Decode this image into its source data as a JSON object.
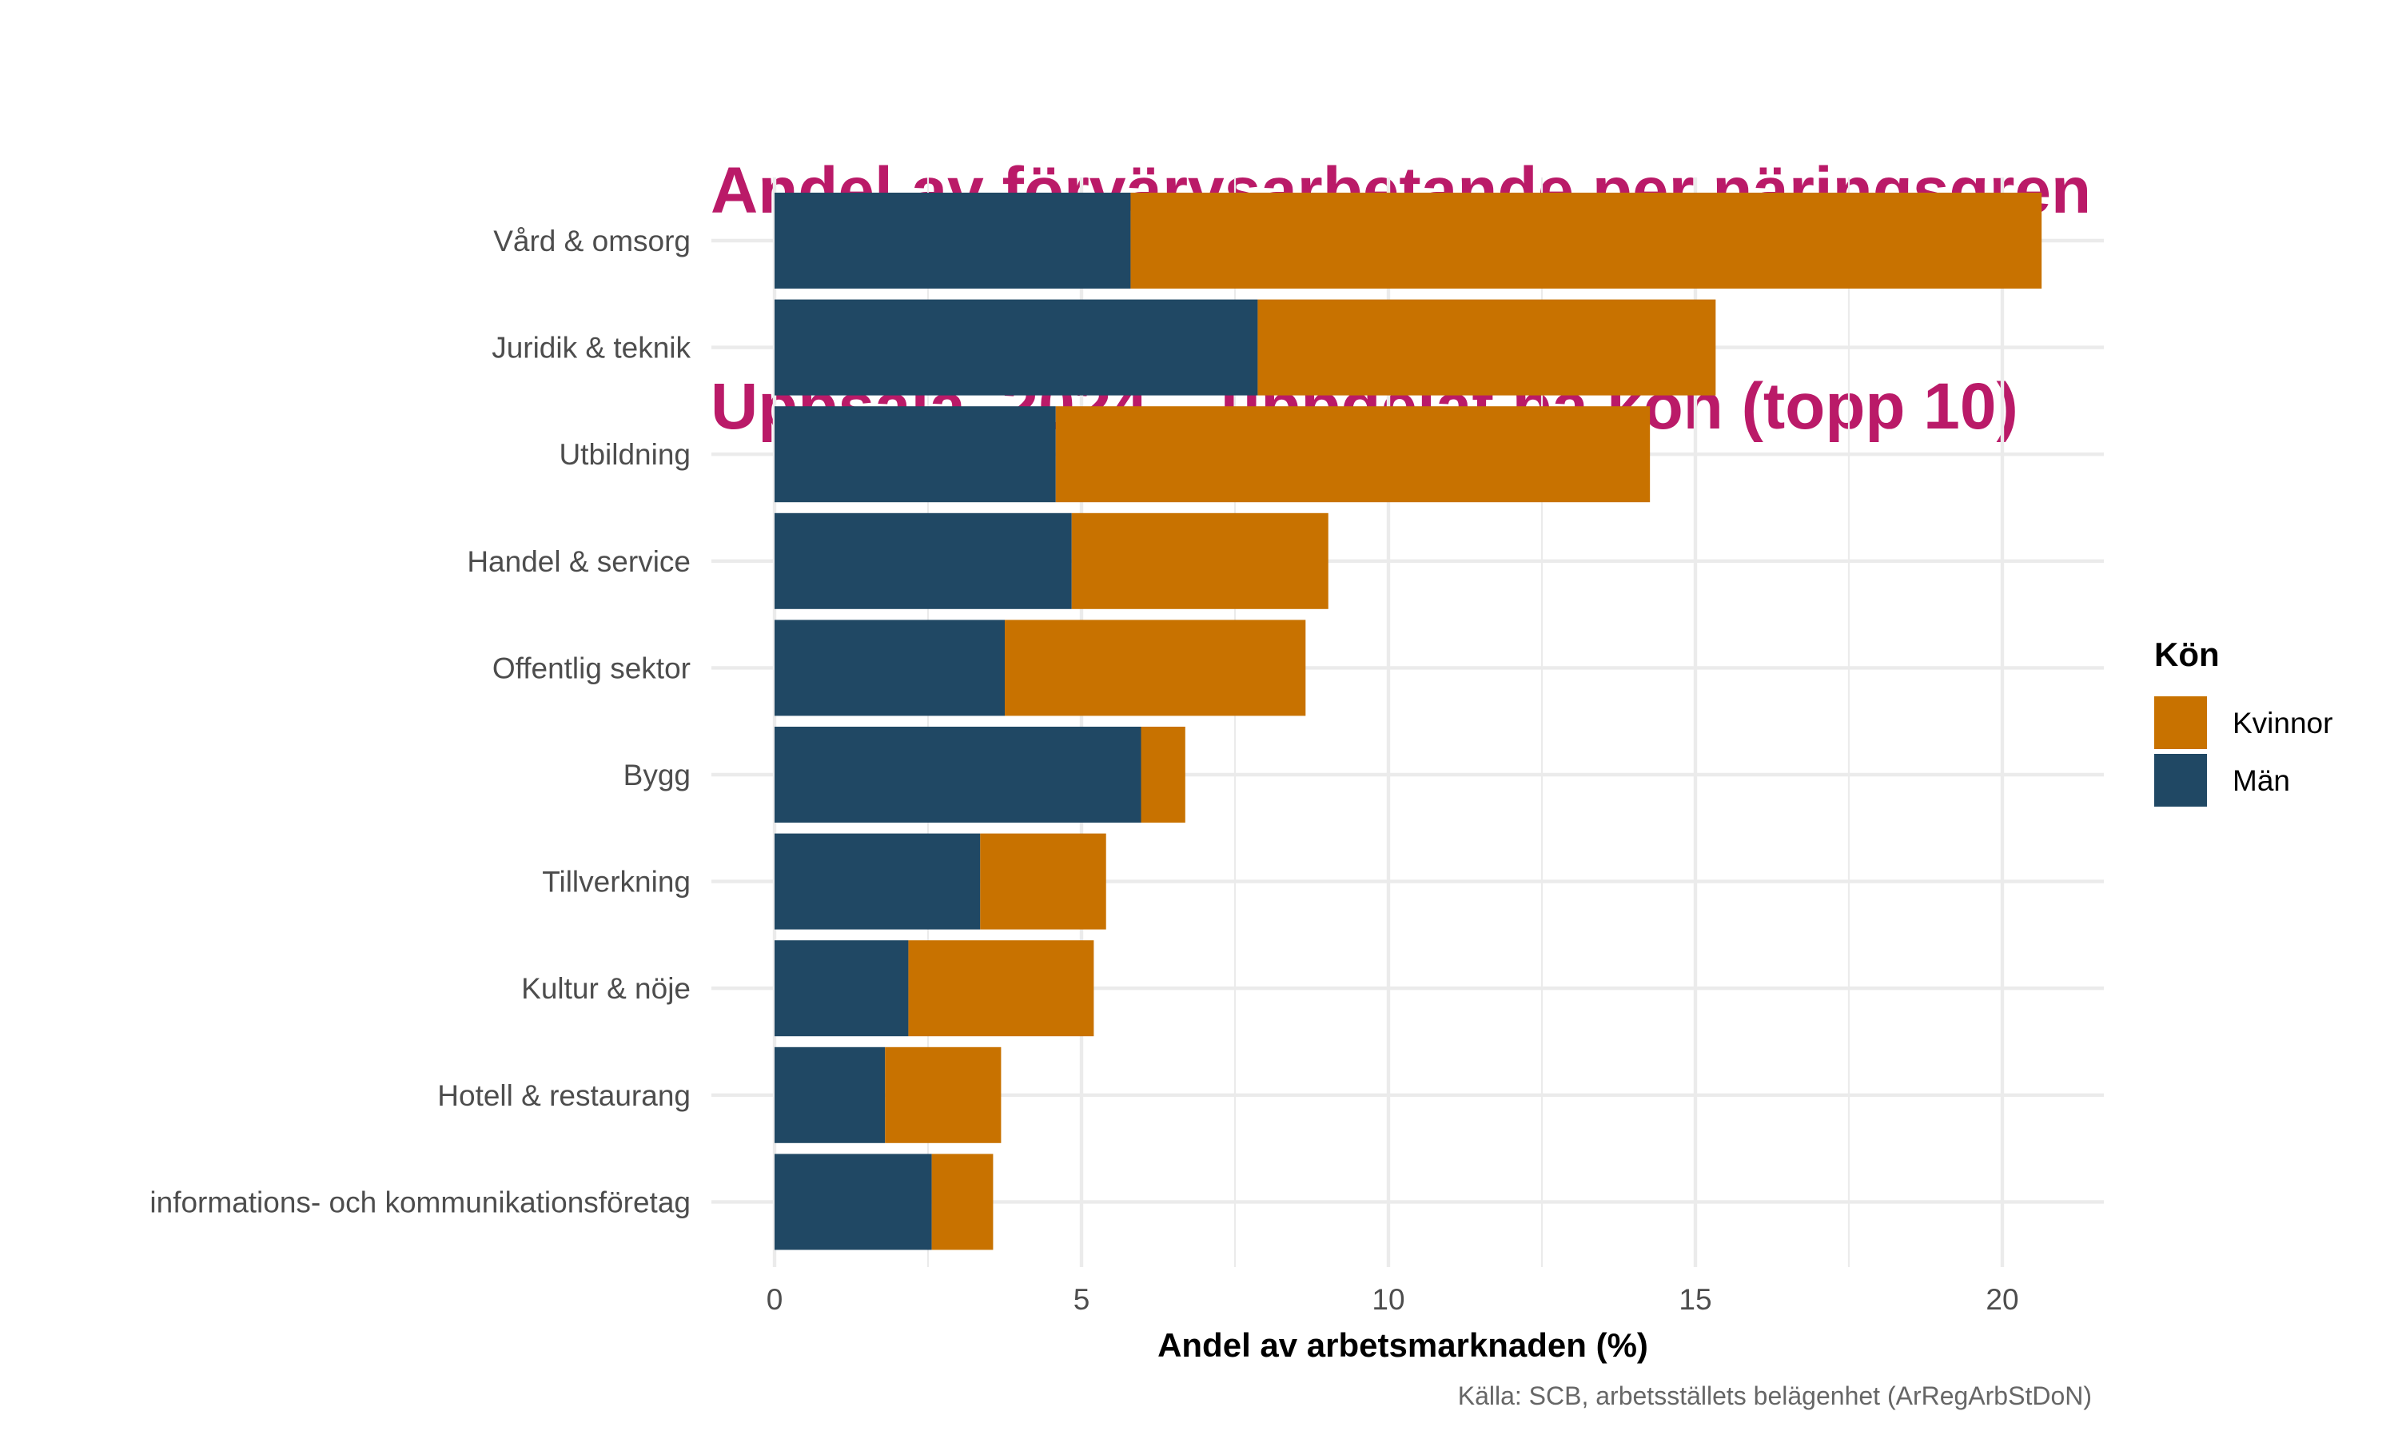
{
  "chart_data": {
    "type": "bar",
    "orientation": "horizontal",
    "stacked": true,
    "title": "Andel av förvärvsarbetande per näringsgren\nUppsala, 2024 – uppdelat på kön (topp 10)",
    "title_lines": [
      "Andel av förvärvsarbetande per näringsgren",
      "Uppsala, 2024 – uppdelat på kön (topp 10)"
    ],
    "xlabel": "Andel av arbetsmarknaden (%)",
    "ylabel": "",
    "caption": "Källa: SCB, arbetsställets belägenhet (ArRegArbStDoN)",
    "categories": [
      "Vård & omsorg",
      "Juridik & teknik",
      "Utbildning",
      "Handel & service",
      "Offentlig sektor",
      "Bygg",
      "Tillverkning",
      "Kultur & nöje",
      "Hotell & restaurang",
      "informations- och kommunikationsföretag"
    ],
    "series": [
      {
        "name": "Män",
        "color": "#204864",
        "values": [
          5.8,
          7.87,
          4.58,
          4.84,
          3.75,
          5.97,
          3.35,
          2.18,
          1.8,
          2.56
        ]
      },
      {
        "name": "Kvinnor",
        "color": "#C87200",
        "values": [
          14.84,
          7.46,
          9.68,
          4.18,
          4.9,
          0.72,
          2.05,
          3.02,
          1.89,
          1.0
        ]
      }
    ],
    "totals": [
      20.64,
      15.33,
      14.26,
      9.02,
      8.65,
      6.69,
      5.4,
      5.2,
      3.69,
      3.56
    ],
    "xlim": [
      0,
      21.67
    ],
    "x_ticks": [
      0,
      5,
      10,
      15,
      20
    ],
    "x_minor_ticks": [
      2.5,
      7.5,
      12.5,
      17.5
    ],
    "grid": true,
    "legend": {
      "title": "Kön",
      "position": "right",
      "entries": [
        {
          "label": "Kvinnor",
          "color": "#C87200"
        },
        {
          "label": "Män",
          "color": "#204864"
        }
      ]
    },
    "colors": {
      "title": "#BA1A68",
      "grid": "#EBEBEB"
    }
  }
}
